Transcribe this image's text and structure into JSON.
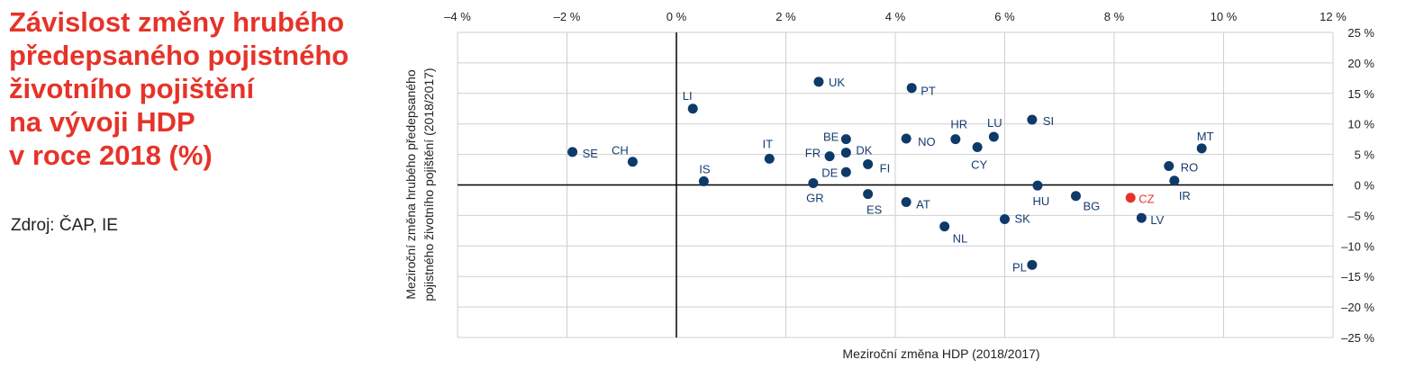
{
  "title_lines": [
    "Závislost změny hrubého",
    "předepsaného pojistného",
    "životního pojištění",
    "na vývoji HDP",
    "v roce 2018 (%)"
  ],
  "source": "Zdroj: ČAP, IE",
  "colors": {
    "title": "#e63329",
    "point": "#0e3a6a",
    "label": "#153d6e",
    "highlight": "#e63329",
    "text": "#222222",
    "grid": "#cfcfcf",
    "axis": "#000000"
  },
  "chart_data": {
    "type": "scatter",
    "xlabel": "Meziroční změna HDP (2018/2017)",
    "ylabel": [
      "Meziroční změna hrubého předepsaného",
      "pojistného životního pojištění (2018/2017)"
    ],
    "xlim": [
      -4,
      12
    ],
    "ylim": [
      -25,
      25
    ],
    "x_ticks": [
      -4,
      -2,
      0,
      2,
      4,
      6,
      8,
      10,
      12
    ],
    "x_tick_labels": [
      "–4 %",
      "–2 %",
      "0 %",
      "2 %",
      "4 %",
      "6 %",
      "8 %",
      "10 %",
      "12 %"
    ],
    "y_ticks": [
      25,
      20,
      15,
      10,
      5,
      0,
      -5,
      -10,
      -15,
      -20,
      -25
    ],
    "y_tick_labels": [
      "25 %",
      "20 %",
      "15 %",
      "10 %",
      "5 %",
      "0 %",
      "–5 %",
      "–10 %",
      "–15 %",
      "–20 %",
      "–25 %"
    ],
    "grid": true,
    "highlight": "CZ",
    "points": [
      {
        "label": "SE",
        "x": -1.9,
        "y": 5.4
      },
      {
        "label": "CH",
        "x": -0.8,
        "y": 3.8
      },
      {
        "label": "LI",
        "x": 0.3,
        "y": 12.5
      },
      {
        "label": "IS",
        "x": 0.5,
        "y": 0.6
      },
      {
        "label": "IT",
        "x": 1.7,
        "y": 4.3
      },
      {
        "label": "UK",
        "x": 2.6,
        "y": 16.9
      },
      {
        "label": "GR",
        "x": 2.5,
        "y": 0.3
      },
      {
        "label": "FR",
        "x": 2.8,
        "y": 4.7
      },
      {
        "label": "BE",
        "x": 3.1,
        "y": 7.5
      },
      {
        "label": "DK",
        "x": 3.1,
        "y": 5.3
      },
      {
        "label": "DE",
        "x": 3.1,
        "y": 2.1
      },
      {
        "label": "FI",
        "x": 3.5,
        "y": 3.4
      },
      {
        "label": "ES",
        "x": 3.5,
        "y": -1.5
      },
      {
        "label": "PT",
        "x": 4.3,
        "y": 15.9
      },
      {
        "label": "NO",
        "x": 4.2,
        "y": 7.6
      },
      {
        "label": "AT",
        "x": 4.2,
        "y": -2.8
      },
      {
        "label": "NL",
        "x": 4.9,
        "y": -6.8
      },
      {
        "label": "HR",
        "x": 5.1,
        "y": 7.5
      },
      {
        "label": "CY",
        "x": 5.5,
        "y": 6.2
      },
      {
        "label": "LU",
        "x": 5.8,
        "y": 7.9
      },
      {
        "label": "SI",
        "x": 6.5,
        "y": 10.7
      },
      {
        "label": "SK",
        "x": 6.0,
        "y": -5.6
      },
      {
        "label": "HU",
        "x": 6.6,
        "y": -0.1
      },
      {
        "label": "PL",
        "x": 6.5,
        "y": -13.1
      },
      {
        "label": "BG",
        "x": 7.3,
        "y": -1.8
      },
      {
        "label": "CZ",
        "x": 8.3,
        "y": -2.1
      },
      {
        "label": "LV",
        "x": 8.5,
        "y": -5.4
      },
      {
        "label": "RO",
        "x": 9.0,
        "y": 3.1
      },
      {
        "label": "IR",
        "x": 9.1,
        "y": 0.7
      },
      {
        "label": "MT",
        "x": 9.6,
        "y": 6.0
      }
    ]
  }
}
